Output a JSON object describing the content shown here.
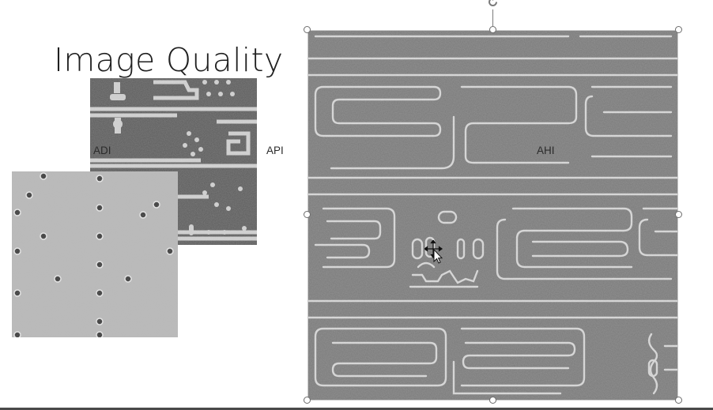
{
  "slide": {
    "title": "Image Quality",
    "labels": {
      "adi": "ADI",
      "api": "API",
      "ahi": "AHI"
    }
  },
  "images": {
    "api": {
      "icon": "api-sem-image",
      "background": "#5d5d5d"
    },
    "adi": {
      "icon": "adi-sem-image",
      "background": "#b8b8b8"
    },
    "ahi": {
      "icon": "ahi-sem-image",
      "background": "#777777"
    }
  },
  "selection": {
    "icon": "rotate-handle-icon",
    "handle_color": "#6d6d6d"
  },
  "cursor": {
    "icon": "move-cursor-icon"
  }
}
